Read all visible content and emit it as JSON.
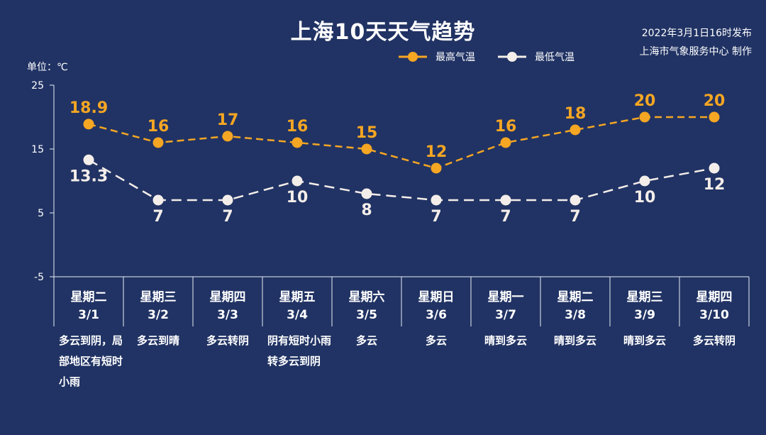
{
  "title": "上海10天天气趋势",
  "publish": {
    "line1": "2022年3月1日16时发布",
    "line2": "上海市气象服务中心 制作"
  },
  "unit_label": "单位：℃",
  "colors": {
    "background": "#213364",
    "high": "#F5A623",
    "low": "#F4EEEA",
    "axis": "#E8ECF5"
  },
  "chart_data": {
    "type": "line",
    "title": "上海10天天气趋势",
    "ylabel": "单位：℃",
    "ylim": [
      -5,
      25
    ],
    "yticks": [
      -5,
      5,
      15,
      25
    ],
    "grid": false,
    "legend_position": "top",
    "categories": [
      "3/1",
      "3/2",
      "3/3",
      "3/4",
      "3/5",
      "3/6",
      "3/7",
      "3/8",
      "3/9",
      "3/10"
    ],
    "weekdays": [
      "星期二",
      "星期三",
      "星期四",
      "星期五",
      "星期六",
      "星期日",
      "星期一",
      "星期二",
      "星期三",
      "星期四"
    ],
    "weather": [
      "多云到阴，局部地区有短时小雨",
      "多云到晴",
      "多云转阴",
      "阴有短时小雨转多云到阴",
      "多云",
      "多云",
      "晴到多云",
      "晴到多云",
      "晴到多云",
      "多云转阴"
    ],
    "series": [
      {
        "name": "最高气温",
        "values": [
          18.9,
          16,
          17,
          16,
          15,
          12,
          16,
          18,
          20,
          20
        ],
        "labels": [
          "18.9",
          "16",
          "17",
          "16",
          "15",
          "12",
          "16",
          "18",
          "20",
          "20"
        ]
      },
      {
        "name": "最低气温",
        "values": [
          13.3,
          7,
          7,
          10,
          8,
          7,
          7,
          7,
          10,
          12
        ],
        "labels": [
          "13.3",
          "7",
          "7",
          "10",
          "8",
          "7",
          "7",
          "7",
          "10",
          "12"
        ]
      }
    ]
  }
}
